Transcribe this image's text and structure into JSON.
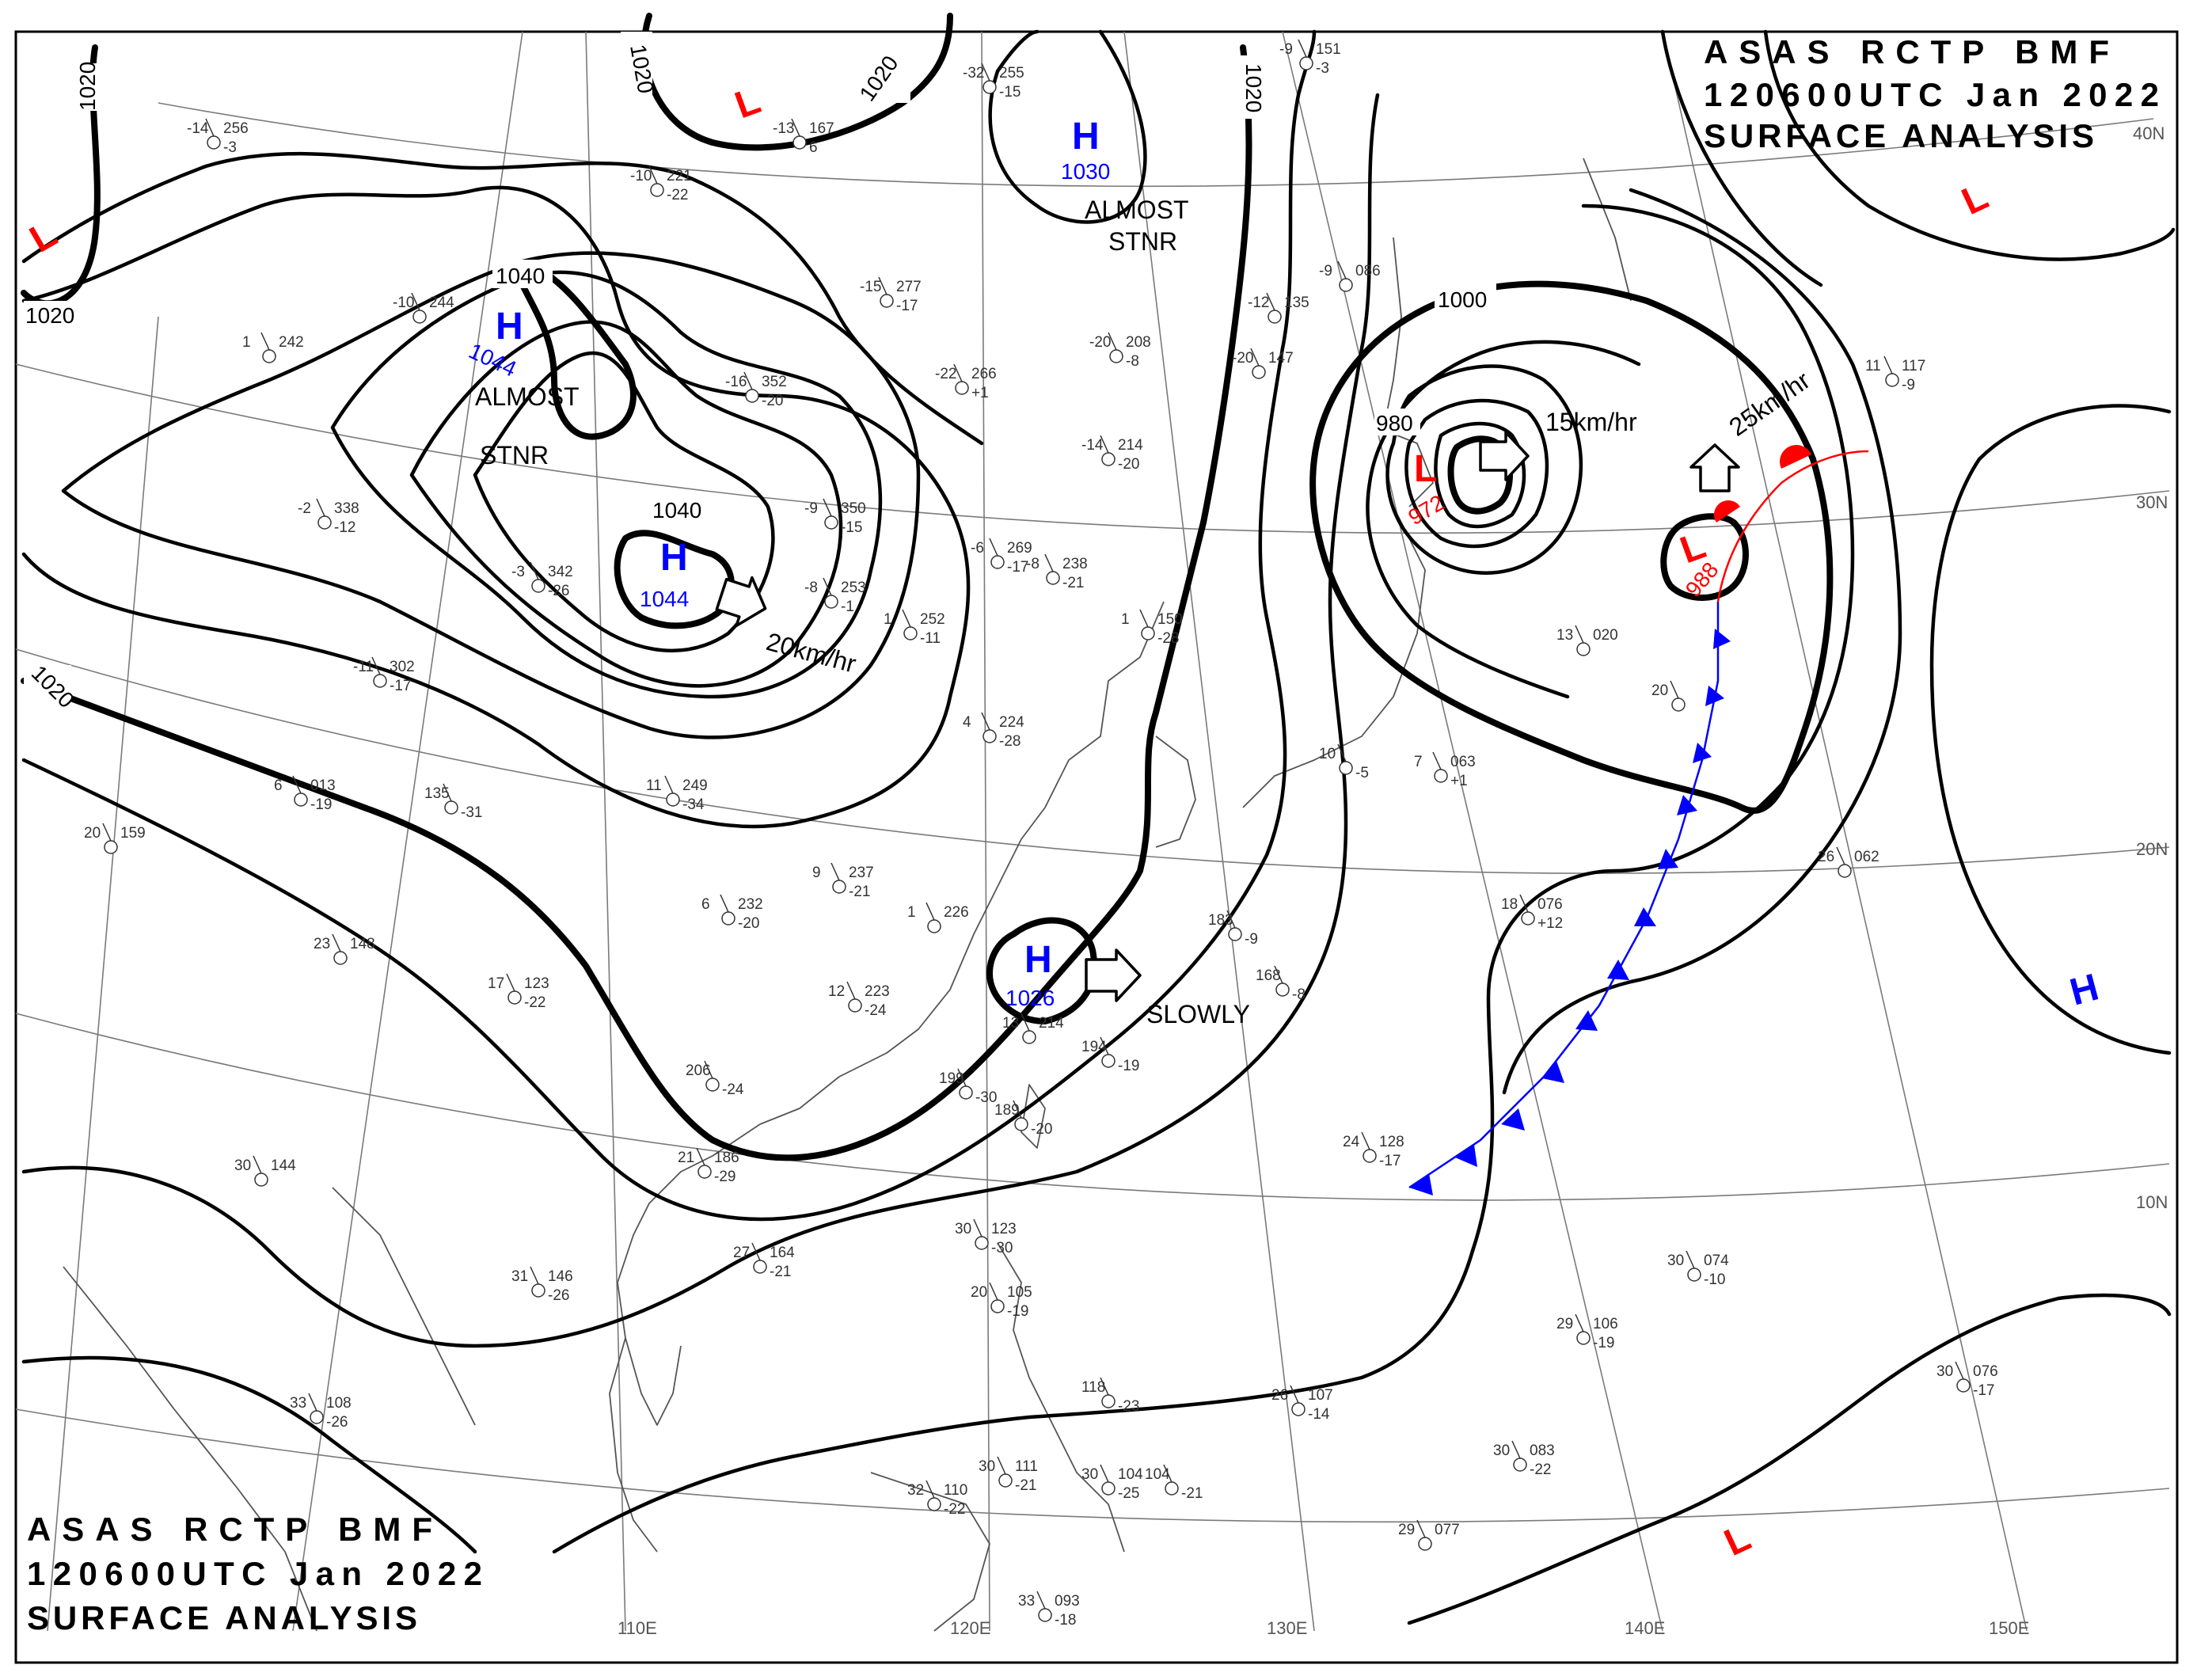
{
  "header": {
    "title_top": [
      "ASAS RCTP BMF",
      "120600UTC Jan 2022",
      "SURFACE ANALYSIS"
    ],
    "title_bottom": [
      "ASAS RCTP BMF",
      "120600UTC Jan 2022",
      "SURFACE ANALYSIS"
    ]
  },
  "grid": {
    "lon_labels": [
      "110E",
      "120E",
      "130E",
      "140E",
      "150E"
    ],
    "lat_labels": [
      "40N",
      "30N",
      "20N",
      "10N"
    ]
  },
  "isobar_labels": [
    "1020",
    "1020",
    "1020",
    "1020",
    "1020",
    "1020",
    "1040",
    "1040",
    "1000",
    "980"
  ],
  "highs": [
    {
      "symbol": "H",
      "pressure": "1044",
      "note": "ALMOST STNR"
    },
    {
      "symbol": "H",
      "pressure": "1044",
      "motion": "20km/hr"
    },
    {
      "symbol": "H",
      "pressure": "1030",
      "note": "ALMOST STNR"
    },
    {
      "symbol": "H",
      "pressure": "1026",
      "motion": "SLOWLY"
    },
    {
      "symbol": "H"
    }
  ],
  "lows": [
    {
      "symbol": "L",
      "pressure": "972",
      "motion": "15km/hr"
    },
    {
      "symbol": "L",
      "pressure": "988",
      "motion": "25km/hr"
    },
    {
      "symbol": "L"
    },
    {
      "symbol": "L"
    },
    {
      "symbol": "L"
    },
    {
      "symbol": "L"
    }
  ],
  "stations": [
    {
      "t": "-14",
      "p": "256",
      "d": "-3"
    },
    {
      "t": "-13",
      "p": "167",
      "d": "6"
    },
    {
      "t": "-10",
      "p": "221",
      "d": "-22"
    },
    {
      "t": "-32",
      "p": "255",
      "d": "-15"
    },
    {
      "t": "-9",
      "p": "151",
      "d": "-3"
    },
    {
      "t": "-10",
      "p": "244",
      "d": ""
    },
    {
      "t": "1",
      "p": "242",
      "d": ""
    },
    {
      "t": "-15",
      "p": "277",
      "d": "-17"
    },
    {
      "t": "-16",
      "p": "352",
      "d": "-20"
    },
    {
      "t": "-22",
      "p": "266",
      "d": "+1"
    },
    {
      "t": "-20",
      "p": "208",
      "d": "-8"
    },
    {
      "t": "-12",
      "p": "135",
      "d": ""
    },
    {
      "t": "-9",
      "p": "086",
      "d": ""
    },
    {
      "t": "-20",
      "p": "147",
      "d": ""
    },
    {
      "t": "-2",
      "p": "338",
      "d": "-12"
    },
    {
      "t": "-3",
      "p": "342",
      "d": "-26"
    },
    {
      "t": "-9",
      "p": "350",
      "d": "-15"
    },
    {
      "t": "-8",
      "p": "253",
      "d": "-1"
    },
    {
      "t": "-14",
      "p": "214",
      "d": "-20"
    },
    {
      "t": "-6",
      "p": "269",
      "d": "-17"
    },
    {
      "t": "-8",
      "p": "238",
      "d": "-21"
    },
    {
      "t": "1",
      "p": "252",
      "d": "-11"
    },
    {
      "t": "1",
      "p": "150",
      "d": "-28"
    },
    {
      "t": "-11",
      "p": "302",
      "d": "-17"
    },
    {
      "t": "4",
      "p": "224",
      "d": "-28"
    },
    {
      "t": "6",
      "p": "013",
      "d": "-19"
    },
    {
      "t": "11",
      "p": "249",
      "d": "-34"
    },
    {
      "t": "135",
      "p": "",
      "d": "-31"
    },
    {
      "t": "20",
      "p": "159",
      "d": ""
    },
    {
      "t": "9",
      "p": "237",
      "d": "-21"
    },
    {
      "t": "6",
      "p": "232",
      "d": "-20"
    },
    {
      "t": "1",
      "p": "226",
      "d": ""
    },
    {
      "t": "23",
      "p": "148",
      "d": ""
    },
    {
      "t": "17",
      "p": "123",
      "d": "-22"
    },
    {
      "t": "12",
      "p": "223",
      "d": "-24"
    },
    {
      "t": "13",
      "p": "214",
      "d": ""
    },
    {
      "t": "194",
      "p": "",
      "d": "-19"
    },
    {
      "t": "183",
      "p": "",
      "d": "-9"
    },
    {
      "t": "168",
      "p": "",
      "d": "-8"
    },
    {
      "t": "206",
      "p": "",
      "d": "-24"
    },
    {
      "t": "199",
      "p": "",
      "d": "-30"
    },
    {
      "t": "189",
      "p": "",
      "d": "-20"
    },
    {
      "t": "30",
      "p": "144",
      "d": ""
    },
    {
      "t": "21",
      "p": "186",
      "d": "-29"
    },
    {
      "t": "31",
      "p": "146",
      "d": "-26"
    },
    {
      "t": "27",
      "p": "164",
      "d": "-21"
    },
    {
      "t": "30",
      "p": "123",
      "d": "-30"
    },
    {
      "t": "20",
      "p": "105",
      "d": "-19"
    },
    {
      "t": "33",
      "p": "108",
      "d": "-26"
    },
    {
      "t": "118",
      "p": "",
      "d": "-23"
    },
    {
      "t": "26",
      "p": "107",
      "d": "-14"
    },
    {
      "t": "32",
      "p": "110",
      "d": "-22"
    },
    {
      "t": "30",
      "p": "111",
      "d": "-21"
    },
    {
      "t": "30",
      "p": "104",
      "d": "-25"
    },
    {
      "t": "104",
      "p": "",
      "d": "-21"
    },
    {
      "t": "33",
      "p": "093",
      "d": "-18"
    },
    {
      "t": "13",
      "p": "020",
      "d": ""
    },
    {
      "t": "20",
      "p": "",
      "d": ""
    },
    {
      "t": "10",
      "p": "",
      "d": "-5"
    },
    {
      "t": "7",
      "p": "063",
      "d": "+1"
    },
    {
      "t": "18",
      "p": "076",
      "d": "+12"
    },
    {
      "t": "26",
      "p": "062",
      "d": ""
    },
    {
      "t": "24",
      "p": "128",
      "d": "-17"
    },
    {
      "t": "30",
      "p": "074",
      "d": "-10"
    },
    {
      "t": "29",
      "p": "106",
      "d": "-19"
    },
    {
      "t": "30",
      "p": "083",
      "d": "-22"
    },
    {
      "t": "29",
      "p": "077",
      "d": ""
    },
    {
      "t": "30",
      "p": "076",
      "d": "-17"
    },
    {
      "t": "11",
      "p": "117",
      "d": "-9"
    }
  ]
}
